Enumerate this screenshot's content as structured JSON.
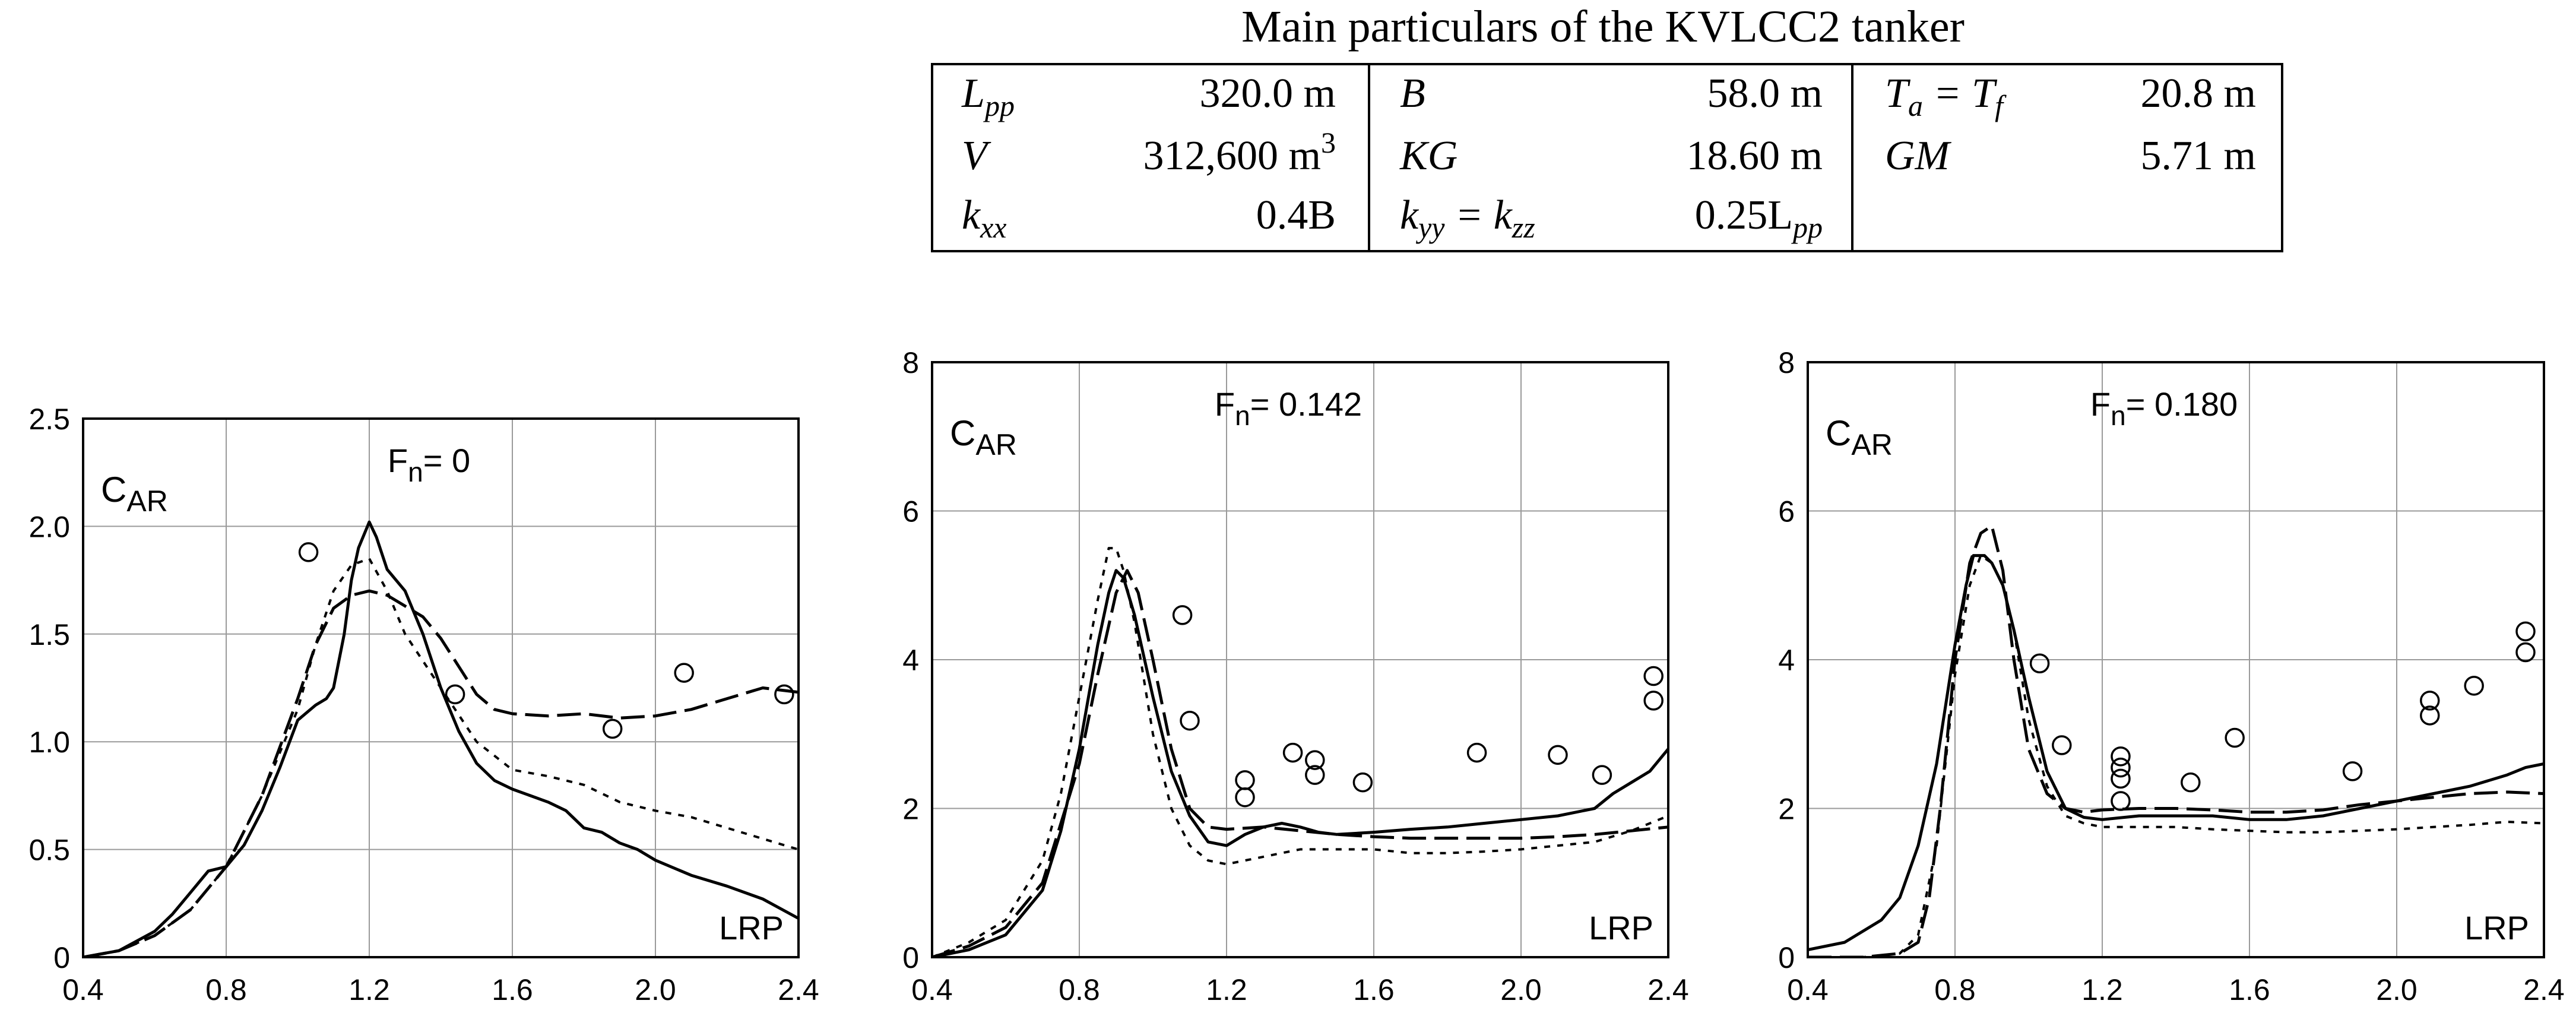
{
  "table": {
    "title": "Main particulars of the KVLCC2 tanker",
    "rows": [
      [
        {
          "label": "L",
          "sub": "pp",
          "value": "320.0 m"
        },
        {
          "label": "B",
          "value": "58.0 m"
        },
        {
          "label": "T",
          "sub": "a",
          "label2": " = T",
          "sub2": "f",
          "value": "20.8 m"
        }
      ],
      [
        {
          "label": "V",
          "value": "312,600 m",
          "sup": "3"
        },
        {
          "label": "KG",
          "value": "18.60 m"
        },
        {
          "label": "GM",
          "value": "5.71 m"
        }
      ],
      [
        {
          "label": "k",
          "sub": "xx",
          "value": "0.4B"
        },
        {
          "label": "k",
          "sub": "yy",
          "label2": " = k",
          "sub2": "zz",
          "value": "0.25L",
          "valsub": "pp"
        },
        {
          "label": "",
          "value": ""
        }
      ]
    ]
  },
  "chart_data": [
    {
      "type": "line",
      "title": "Fn= 0",
      "ylabel": "CAR",
      "xlabel": "LRP",
      "xlim": [
        0.4,
        2.4
      ],
      "ylim": [
        0,
        2.5
      ],
      "xticks": [
        "0.4",
        "0.8",
        "1.2",
        "1.6",
        "2.0",
        "2.4"
      ],
      "yticks": [
        "0",
        "0.5",
        "1.0",
        "1.5",
        "2.0",
        "2.5"
      ],
      "ytick_values": [
        0,
        0.5,
        1.0,
        1.5,
        2.0,
        2.5
      ],
      "grid": true,
      "series": [
        {
          "name": "solid",
          "style": "solid",
          "x": [
            0.4,
            0.5,
            0.6,
            0.65,
            0.7,
            0.75,
            0.8,
            0.85,
            0.9,
            0.95,
            1.0,
            1.05,
            1.08,
            1.1,
            1.13,
            1.15,
            1.17,
            1.2,
            1.22,
            1.25,
            1.3,
            1.35,
            1.4,
            1.45,
            1.5,
            1.55,
            1.6,
            1.65,
            1.7,
            1.75,
            1.8,
            1.85,
            1.9,
            1.95,
            2.0,
            2.1,
            2.2,
            2.3,
            2.4
          ],
          "y": [
            0,
            0.03,
            0.12,
            0.2,
            0.3,
            0.4,
            0.42,
            0.52,
            0.68,
            0.88,
            1.1,
            1.17,
            1.2,
            1.25,
            1.5,
            1.75,
            1.9,
            2.02,
            1.95,
            1.8,
            1.7,
            1.5,
            1.25,
            1.05,
            0.9,
            0.82,
            0.78,
            0.75,
            0.72,
            0.68,
            0.6,
            0.58,
            0.53,
            0.5,
            0.45,
            0.38,
            0.33,
            0.27,
            0.18
          ]
        },
        {
          "name": "long-dash",
          "style": "dash",
          "x": [
            0.4,
            0.5,
            0.6,
            0.7,
            0.8,
            0.9,
            1.0,
            1.05,
            1.1,
            1.15,
            1.2,
            1.25,
            1.3,
            1.35,
            1.4,
            1.45,
            1.5,
            1.55,
            1.6,
            1.7,
            1.8,
            1.9,
            2.0,
            2.1,
            2.2,
            2.3,
            2.4
          ],
          "y": [
            0,
            0.03,
            0.1,
            0.22,
            0.42,
            0.75,
            1.2,
            1.45,
            1.62,
            1.68,
            1.7,
            1.68,
            1.63,
            1.58,
            1.48,
            1.35,
            1.22,
            1.15,
            1.13,
            1.12,
            1.13,
            1.11,
            1.12,
            1.15,
            1.2,
            1.25,
            1.23
          ]
        },
        {
          "name": "short-dash",
          "style": "dot",
          "x": [
            0.4,
            0.5,
            0.6,
            0.7,
            0.8,
            0.9,
            1.0,
            1.05,
            1.1,
            1.15,
            1.2,
            1.25,
            1.3,
            1.4,
            1.5,
            1.6,
            1.7,
            1.8,
            1.9,
            2.0,
            2.1,
            2.2,
            2.3,
            2.4
          ],
          "y": [
            0,
            0.03,
            0.1,
            0.22,
            0.42,
            0.75,
            1.15,
            1.45,
            1.7,
            1.82,
            1.85,
            1.7,
            1.5,
            1.25,
            1.0,
            0.87,
            0.84,
            0.8,
            0.72,
            0.68,
            0.65,
            0.6,
            0.55,
            0.5
          ]
        }
      ],
      "points": {
        "name": "experiment",
        "x": [
          1.03,
          1.44,
          1.88,
          2.08,
          2.36
        ],
        "y": [
          1.88,
          1.22,
          1.06,
          1.32,
          1.22
        ]
      }
    },
    {
      "type": "line",
      "title": "Fn= 0.142",
      "ylabel": "CAR",
      "xlabel": "LRP",
      "xlim": [
        0.4,
        2.4
      ],
      "ylim": [
        0,
        8
      ],
      "xticks": [
        "0.4",
        "0.8",
        "1.2",
        "1.6",
        "2.0",
        "2.4"
      ],
      "yticks": [
        "0",
        "2",
        "4",
        "6",
        "8"
      ],
      "ytick_values": [
        0,
        2,
        4,
        6,
        8
      ],
      "grid": true,
      "series": [
        {
          "name": "solid",
          "style": "solid",
          "x": [
            0.4,
            0.5,
            0.6,
            0.7,
            0.75,
            0.8,
            0.85,
            0.88,
            0.9,
            0.92,
            0.95,
            1.0,
            1.05,
            1.1,
            1.15,
            1.2,
            1.25,
            1.3,
            1.35,
            1.4,
            1.45,
            1.5,
            1.6,
            1.7,
            1.8,
            1.9,
            2.0,
            2.1,
            2.2,
            2.25,
            2.3,
            2.35,
            2.4
          ],
          "y": [
            0,
            0.1,
            0.3,
            0.9,
            1.7,
            2.8,
            4.2,
            4.9,
            5.2,
            5.1,
            4.6,
            3.5,
            2.5,
            1.9,
            1.55,
            1.5,
            1.65,
            1.75,
            1.8,
            1.75,
            1.68,
            1.65,
            1.68,
            1.72,
            1.75,
            1.8,
            1.85,
            1.9,
            2.0,
            2.2,
            2.35,
            2.5,
            2.8
          ]
        },
        {
          "name": "long-dash",
          "style": "dash",
          "x": [
            0.4,
            0.5,
            0.6,
            0.7,
            0.8,
            0.85,
            0.9,
            0.93,
            0.96,
            1.0,
            1.05,
            1.1,
            1.15,
            1.2,
            1.3,
            1.4,
            1.5,
            1.6,
            1.7,
            1.8,
            1.9,
            2.0,
            2.1,
            2.2,
            2.3,
            2.4
          ],
          "y": [
            0,
            0.15,
            0.4,
            1.0,
            2.6,
            3.8,
            4.9,
            5.2,
            4.9,
            4.0,
            2.8,
            2.0,
            1.75,
            1.72,
            1.75,
            1.7,
            1.65,
            1.62,
            1.6,
            1.6,
            1.6,
            1.6,
            1.62,
            1.65,
            1.7,
            1.75
          ]
        },
        {
          "name": "short-dash",
          "style": "dot",
          "x": [
            0.4,
            0.5,
            0.6,
            0.7,
            0.75,
            0.8,
            0.85,
            0.88,
            0.9,
            0.92,
            0.95,
            1.0,
            1.05,
            1.1,
            1.15,
            1.2,
            1.3,
            1.4,
            1.5,
            1.6,
            1.7,
            1.8,
            1.9,
            2.0,
            2.1,
            2.2,
            2.3,
            2.4
          ],
          "y": [
            0,
            0.2,
            0.5,
            1.3,
            2.2,
            3.5,
            4.8,
            5.5,
            5.5,
            5.2,
            4.5,
            3.0,
            2.0,
            1.5,
            1.3,
            1.25,
            1.35,
            1.45,
            1.45,
            1.45,
            1.4,
            1.4,
            1.42,
            1.45,
            1.5,
            1.55,
            1.7,
            1.9
          ]
        }
      ],
      "points": {
        "name": "experiment",
        "x": [
          1.08,
          1.1,
          1.25,
          1.25,
          1.38,
          1.44,
          1.44,
          1.57,
          1.88,
          2.1,
          2.22,
          2.36,
          2.36
        ],
        "y": [
          4.6,
          3.18,
          2.38,
          2.15,
          2.75,
          2.65,
          2.45,
          2.35,
          2.75,
          2.72,
          2.45,
          3.78,
          3.45
        ]
      }
    },
    {
      "type": "line",
      "title": "Fn= 0.180",
      "ylabel": "CAR",
      "xlabel": "LRP",
      "xlim": [
        0.4,
        2.4
      ],
      "ylim": [
        0,
        8
      ],
      "xticks": [
        "0.4",
        "0.8",
        "1.2",
        "1.6",
        "2.0",
        "2.4"
      ],
      "yticks": [
        "0",
        "2",
        "4",
        "6",
        "8"
      ],
      "ytick_values": [
        0,
        2,
        4,
        6,
        8
      ],
      "grid": true,
      "series": [
        {
          "name": "solid",
          "style": "solid",
          "x": [
            0.4,
            0.5,
            0.6,
            0.65,
            0.7,
            0.75,
            0.8,
            0.83,
            0.85,
            0.88,
            0.9,
            0.93,
            0.96,
            1.0,
            1.05,
            1.1,
            1.15,
            1.2,
            1.3,
            1.4,
            1.5,
            1.6,
            1.7,
            1.8,
            1.9,
            2.0,
            2.1,
            2.2,
            2.3,
            2.35,
            2.4
          ],
          "y": [
            0.1,
            0.2,
            0.5,
            0.8,
            1.5,
            2.6,
            4.2,
            5.0,
            5.4,
            5.4,
            5.3,
            5.0,
            4.4,
            3.5,
            2.5,
            2.0,
            1.88,
            1.85,
            1.9,
            1.9,
            1.9,
            1.85,
            1.85,
            1.9,
            2.0,
            2.1,
            2.2,
            2.3,
            2.45,
            2.55,
            2.6
          ]
        },
        {
          "name": "long-dash",
          "style": "dash",
          "x": [
            0.4,
            0.55,
            0.65,
            0.7,
            0.73,
            0.76,
            0.8,
            0.84,
            0.87,
            0.9,
            0.93,
            0.96,
            1.0,
            1.05,
            1.1,
            1.15,
            1.2,
            1.3,
            1.4,
            1.5,
            1.6,
            1.7,
            1.8,
            1.9,
            2.0,
            2.1,
            2.2,
            2.3,
            2.4
          ],
          "y": [
            0,
            0,
            0.05,
            0.2,
            0.8,
            2.0,
            4.0,
            5.3,
            5.7,
            5.8,
            5.2,
            4.0,
            2.8,
            2.2,
            2.0,
            1.95,
            1.98,
            2.0,
            2.0,
            1.98,
            1.95,
            1.95,
            1.98,
            2.05,
            2.1,
            2.15,
            2.2,
            2.22,
            2.2
          ]
        },
        {
          "name": "short-dash",
          "style": "dot",
          "x": [
            0.4,
            0.55,
            0.65,
            0.7,
            0.75,
            0.8,
            0.84,
            0.87,
            0.9,
            0.93,
            0.96,
            1.0,
            1.05,
            1.1,
            1.15,
            1.2,
            1.3,
            1.4,
            1.5,
            1.6,
            1.7,
            1.8,
            1.9,
            2.0,
            2.1,
            2.2,
            2.3,
            2.4
          ],
          "y": [
            0,
            0,
            0.05,
            0.3,
            1.5,
            3.8,
            5.0,
            5.4,
            5.3,
            5.0,
            4.4,
            3.2,
            2.3,
            1.9,
            1.8,
            1.75,
            1.75,
            1.75,
            1.72,
            1.7,
            1.68,
            1.68,
            1.7,
            1.72,
            1.75,
            1.78,
            1.82,
            1.8
          ]
        }
      ],
      "points": {
        "name": "experiment",
        "x": [
          1.03,
          1.09,
          1.25,
          1.25,
          1.25,
          1.25,
          1.44,
          1.56,
          1.88,
          2.09,
          2.09,
          2.21,
          2.35,
          2.35
        ],
        "y": [
          3.95,
          2.85,
          2.7,
          2.55,
          2.4,
          2.1,
          2.35,
          2.95,
          2.5,
          3.45,
          3.25,
          3.65,
          4.38,
          4.1
        ]
      }
    }
  ]
}
